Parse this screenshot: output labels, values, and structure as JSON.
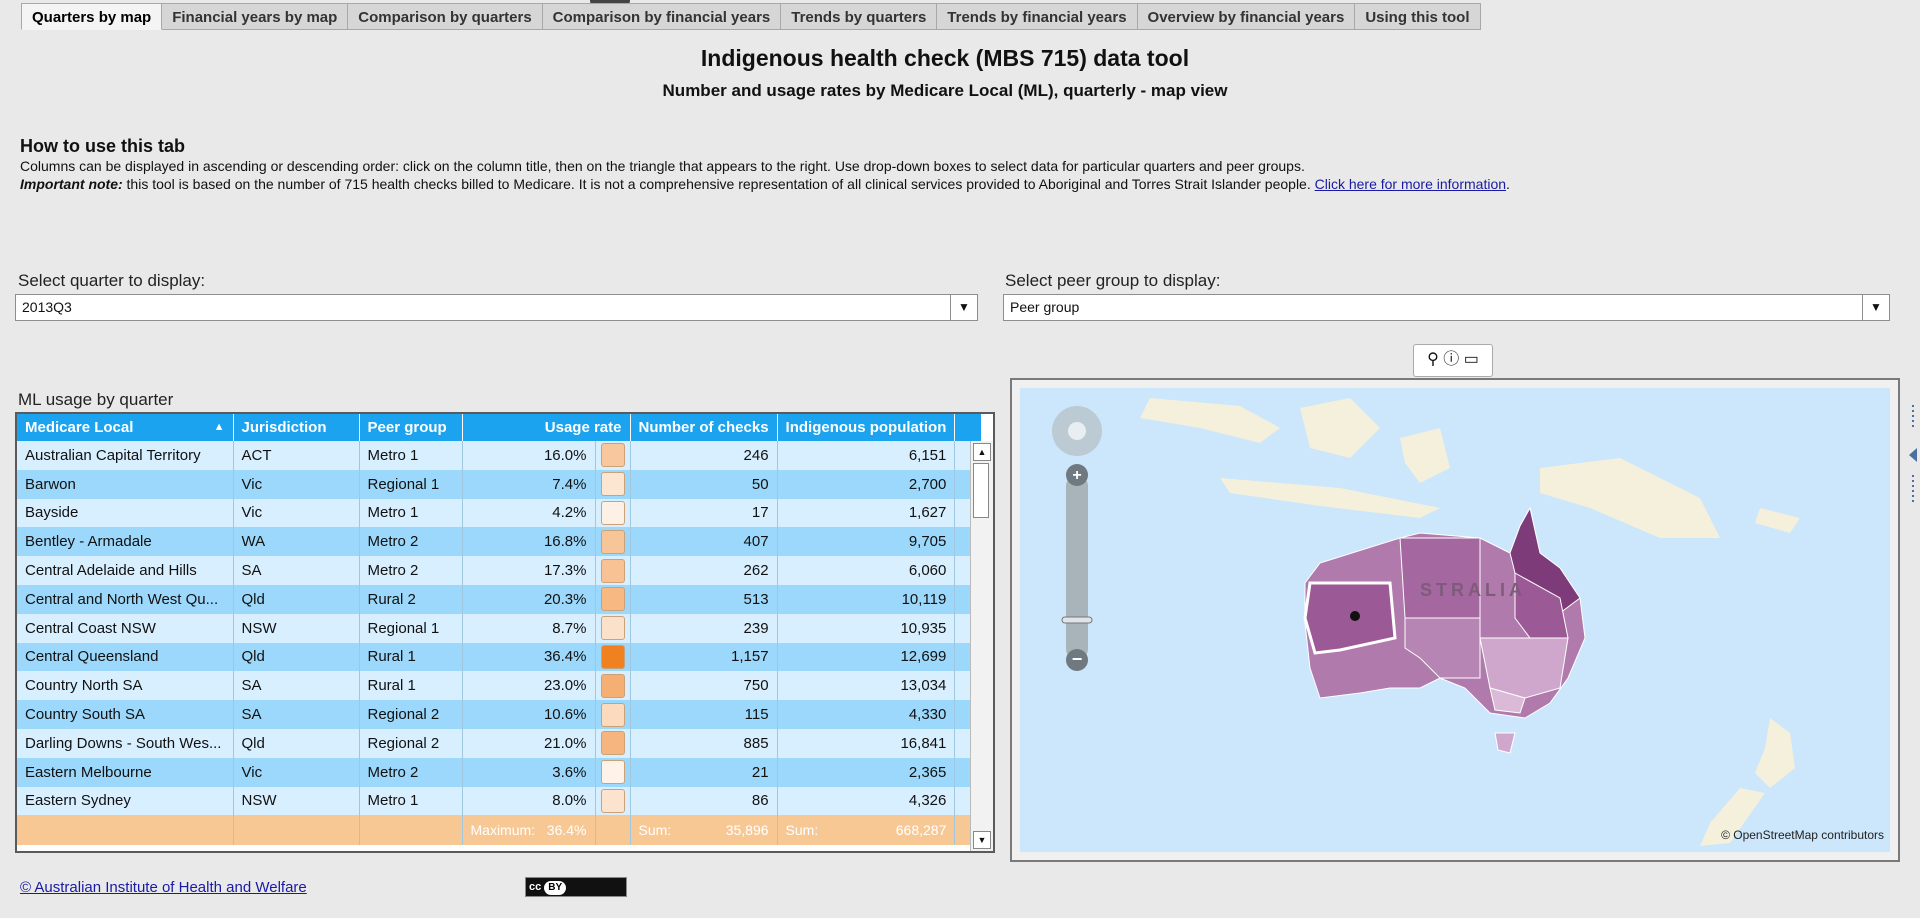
{
  "tabs": [
    {
      "label": "Quarters by map"
    },
    {
      "label": "Financial years by map"
    },
    {
      "label": "Comparison by quarters"
    },
    {
      "label": "Comparison by financial years"
    },
    {
      "label": "Trends by quarters"
    },
    {
      "label": "Trends by financial years"
    },
    {
      "label": "Overview by financial years"
    },
    {
      "label": "Using this tool"
    }
  ],
  "header": {
    "title": "Indigenous health check (MBS 715) data tool",
    "subtitle": "Number and usage rates by Medicare Local (ML), quarterly - map view"
  },
  "howto": {
    "heading": "How to use this tab",
    "line1": "Columns can be displayed in ascending or descending order: click on the column title, then on the triangle that appears to the right. Use drop-down boxes to select data for particular quarters and peer groups.",
    "important_label": "Important note:",
    "important_text": " this tool is based on the number of 715 health checks billed to Medicare. It is not a comprehensive representation of all clinical services provided to Aboriginal and Torres Strait Islander people. ",
    "link_text": "Click here for more information"
  },
  "filters": {
    "quarter_label": "Select quarter to display:",
    "quarter_value": "2013Q3",
    "peer_label": "Select peer group to display:",
    "peer_value": "Peer group"
  },
  "table": {
    "caption": "ML usage by quarter",
    "columns": [
      "Medicare Local",
      "Jurisdiction",
      "Peer group",
      "Usage rate",
      "Number of checks",
      "Indigenous population"
    ],
    "rows": [
      {
        "ml": "Australian Capital Territory",
        "jur": "ACT",
        "peer": "Metro 1",
        "rate": "16.0%",
        "checks": "246",
        "pop": "6,151",
        "level": 0.44
      },
      {
        "ml": "Barwon",
        "jur": "Vic",
        "peer": "Regional 1",
        "rate": "7.4%",
        "checks": "50",
        "pop": "2,700",
        "level": 0.2
      },
      {
        "ml": "Bayside",
        "jur": "Vic",
        "peer": "Metro 1",
        "rate": "4.2%",
        "checks": "17",
        "pop": "1,627",
        "level": 0.12
      },
      {
        "ml": "Bentley - Armadale",
        "jur": "WA",
        "peer": "Metro 2",
        "rate": "16.8%",
        "checks": "407",
        "pop": "9,705",
        "level": 0.46
      },
      {
        "ml": "Central Adelaide and Hills",
        "jur": "SA",
        "peer": "Metro 2",
        "rate": "17.3%",
        "checks": "262",
        "pop": "6,060",
        "level": 0.48
      },
      {
        "ml": "Central and North West Qu...",
        "jur": "Qld",
        "peer": "Rural 2",
        "rate": "20.3%",
        "checks": "513",
        "pop": "10,119",
        "level": 0.56
      },
      {
        "ml": "Central Coast NSW",
        "jur": "NSW",
        "peer": "Regional 1",
        "rate": "8.7%",
        "checks": "239",
        "pop": "10,935",
        "level": 0.24
      },
      {
        "ml": "Central Queensland",
        "jur": "Qld",
        "peer": "Rural 1",
        "rate": "36.4%",
        "checks": "1,157",
        "pop": "12,699",
        "level": 1.0
      },
      {
        "ml": "Country North SA",
        "jur": "SA",
        "peer": "Rural 1",
        "rate": "23.0%",
        "checks": "750",
        "pop": "13,034",
        "level": 0.63
      },
      {
        "ml": "Country South SA",
        "jur": "SA",
        "peer": "Regional 2",
        "rate": "10.6%",
        "checks": "115",
        "pop": "4,330",
        "level": 0.29
      },
      {
        "ml": "Darling Downs - South Wes...",
        "jur": "Qld",
        "peer": "Regional 2",
        "rate": "21.0%",
        "checks": "885",
        "pop": "16,841",
        "level": 0.58
      },
      {
        "ml": "Eastern Melbourne",
        "jur": "Vic",
        "peer": "Metro 2",
        "rate": "3.6%",
        "checks": "21",
        "pop": "2,365",
        "level": 0.1
      },
      {
        "ml": "Eastern Sydney",
        "jur": "NSW",
        "peer": "Metro 1",
        "rate": "8.0%",
        "checks": "86",
        "pop": "4,326",
        "level": 0.22
      }
    ],
    "footer": {
      "max_label": "Maximum:",
      "max_value": "36.4%",
      "sum1_label": "Sum:",
      "sum1_value": "35,896",
      "sum2_label": "Sum:",
      "sum2_value": "668,287"
    }
  },
  "map": {
    "country_label": "STRALIA",
    "attribution": "© OpenStreetMap contributors",
    "toolbar_icons": [
      "pin-tool-icon",
      "info-icon",
      "fullscreen-icon"
    ]
  },
  "footer": {
    "link": "© Australian Institute of Health and Welfare",
    "cc_badge": "BY"
  },
  "colors": {
    "header_blue": "#1ba3f0",
    "row_light": "#d8efff",
    "row_dark": "#9cd8fb",
    "footer_orange": "#f8c894",
    "swatch_max": "#f08020",
    "sea": "#cce6fb",
    "land": "#f4f0dc",
    "region_dark": "#7d3b7a",
    "region_mid": "#a4679f",
    "region_light": "#cfa7cc"
  }
}
